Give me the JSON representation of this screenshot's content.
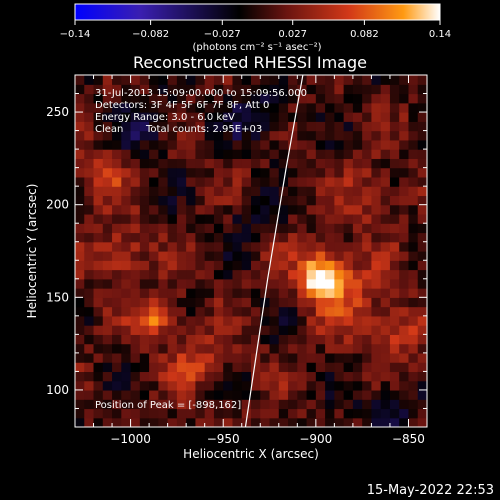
{
  "chart_data": {
    "type": "heatmap",
    "title": "Reconstructed RHESSI Image",
    "xlabel": "Heliocentric X (arcsec)",
    "ylabel": "Heliocentric Y (arcsec)",
    "xlim": [
      -1030,
      -840
    ],
    "ylim": [
      80,
      270
    ],
    "x_ticks": [
      -1000,
      -950,
      -900,
      -850
    ],
    "x_tick_labels": [
      "−1000",
      "−950",
      "−900",
      "−850"
    ],
    "y_ticks": [
      100,
      150,
      200,
      250
    ],
    "y_tick_labels": [
      "100",
      "150",
      "200",
      "250"
    ],
    "colorbar": {
      "range": [
        -0.14,
        0.14
      ],
      "ticks": [
        -0.14,
        -0.082,
        -0.027,
        0.027,
        0.082,
        0.14
      ],
      "tick_labels": [
        "−0.14",
        "−0.082",
        "−0.027",
        "0.027",
        "0.082",
        "0.14"
      ],
      "units_label": "(photons cm⁻² s⁻¹ asec⁻²)",
      "colors": [
        "#0000ff",
        "#3a1fb0",
        "#000000",
        "#6a1410",
        "#d23818",
        "#ff9a12",
        "#ffffff"
      ]
    },
    "sources": [
      {
        "x": -897,
        "y": 162,
        "amp": 0.14,
        "sigma": 9
      },
      {
        "x": -880,
        "y": 150,
        "amp": 0.05,
        "sigma": 14
      },
      {
        "x": -985,
        "y": 140,
        "amp": 0.09,
        "sigma": 8
      },
      {
        "x": -1005,
        "y": 175,
        "amp": 0.06,
        "sigma": 10
      },
      {
        "x": -1015,
        "y": 215,
        "amp": 0.05,
        "sigma": 9
      },
      {
        "x": -965,
        "y": 115,
        "amp": 0.05,
        "sigma": 10
      },
      {
        "x": -870,
        "y": 205,
        "amp": 0.05,
        "sigma": 10
      },
      {
        "x": -855,
        "y": 130,
        "amp": 0.05,
        "sigma": 10
      },
      {
        "x": -930,
        "y": 250,
        "amp": -0.05,
        "sigma": 12
      },
      {
        "x": -990,
        "y": 245,
        "amp": -0.04,
        "sigma": 12
      },
      {
        "x": -860,
        "y": 90,
        "amp": -0.04,
        "sigma": 12
      },
      {
        "x": -935,
        "y": 195,
        "amp": -0.03,
        "sigma": 9
      }
    ],
    "limb_curve": [
      [
        -938,
        80
      ],
      [
        -926,
        160
      ],
      [
        -916,
        220
      ],
      [
        -907,
        270
      ]
    ],
    "peak": [
      -898,
      162
    ]
  },
  "annotations": {
    "time_range": "31-Jul-2013 15:09:00.000 to 15:09:56.000",
    "detectors": "Detectors: 3F 4F 5F 6F 7F 8F, Att 0",
    "energy_range": "Energy Range: 3.0 - 6.0 keV",
    "algorithm": "Clean",
    "total_counts": "Total counts: 2.95E+03",
    "peak_position": "Position of Peak = [-898,162]"
  },
  "footer": {
    "timestamp": "15-May-2022 22:53"
  }
}
